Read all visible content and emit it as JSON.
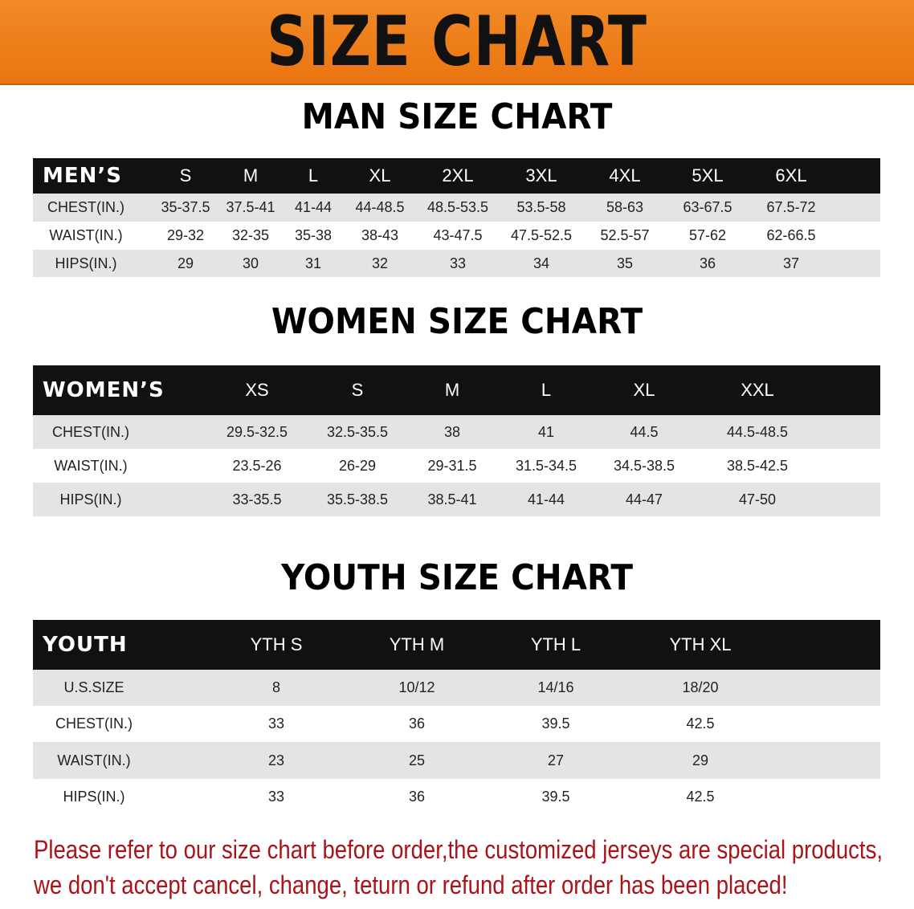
{
  "banner_title": "SIZE CHART",
  "men": {
    "title": "MAN SIZE CHART",
    "header": [
      "MEN’S",
      "S",
      "M",
      "L",
      "XL",
      "2XL",
      "3XL",
      "4XL",
      "5XL",
      "6XL"
    ],
    "rows": [
      [
        "CHEST(IN.)",
        "35-37.5",
        "37.5-41",
        "41-44",
        "44-48.5",
        "48.5-53.5",
        "53.5-58",
        "58-63",
        "63-67.5",
        "67.5-72"
      ],
      [
        "WAIST(IN.)",
        "29-32",
        "32-35",
        "35-38",
        "38-43",
        "43-47.5",
        "47.5-52.5",
        "52.5-57",
        "57-62",
        "62-66.5"
      ],
      [
        "HIPS(IN.)",
        "29",
        "30",
        "31",
        "32",
        "33",
        "34",
        "35",
        "36",
        "37"
      ]
    ]
  },
  "women": {
    "title": "WOMEN SIZE CHART",
    "header": [
      "WOMEN’S",
      "XS",
      "S",
      "M",
      "L",
      "XL",
      "XXL"
    ],
    "rows": [
      [
        "CHEST(IN.)",
        "29.5-32.5",
        "32.5-35.5",
        "38",
        "41",
        "44.5",
        "44.5-48.5"
      ],
      [
        "WAIST(IN.)",
        "23.5-26",
        "26-29",
        "29-31.5",
        "31.5-34.5",
        "34.5-38.5",
        "38.5-42.5"
      ],
      [
        "HIPS(IN.)",
        "33-35.5",
        "35.5-38.5",
        "38.5-41",
        "41-44",
        "44-47",
        "47-50"
      ]
    ]
  },
  "youth": {
    "title": "YOUTH SIZE CHART",
    "header": [
      "YOUTH",
      "YTH S",
      "YTH M",
      "YTH L",
      "YTH XL"
    ],
    "rows": [
      [
        "U.S.SIZE",
        "8",
        "10/12",
        "14/16",
        "18/20"
      ],
      [
        "CHEST(IN.)",
        "33",
        "36",
        "39.5",
        "42.5"
      ],
      [
        "WAIST(IN.)",
        "23",
        "25",
        "27",
        "29"
      ],
      [
        "HIPS(IN.)",
        "33",
        "36",
        "39.5",
        "42.5"
      ]
    ]
  },
  "note": {
    "line1": "Please refer to our size chart before order,the customized jerseys are special products,",
    "line2": "we don't accept cancel, change, teturn or refund after order has been placed!"
  },
  "colors": {
    "banner": "#ef7f1c",
    "header_row": "#111111",
    "grey_row": "#e4e4e4",
    "note": "#a8141a"
  }
}
